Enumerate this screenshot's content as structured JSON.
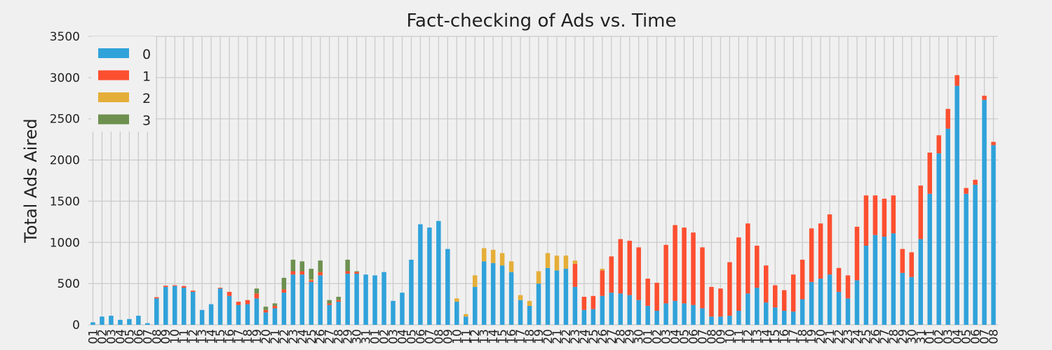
{
  "chart_data": {
    "type": "bar",
    "stacked": true,
    "title": "Fact-checking of Ads vs. Time",
    "xlabel": "",
    "ylabel": "Total Ads Aired",
    "ylim": [
      0,
      3500
    ],
    "yticks": [
      0,
      500,
      1000,
      1500,
      2000,
      2500,
      3000,
      3500
    ],
    "grid": true,
    "legend_position": "top-left",
    "categories": [
      "01",
      "02",
      "03",
      "04",
      "05",
      "06",
      "07",
      "08",
      "09",
      "10",
      "11",
      "12",
      "13",
      "14",
      "15",
      "16",
      "17",
      "18",
      "19",
      "20",
      "21",
      "22",
      "23",
      "24",
      "25",
      "26",
      "27",
      "28",
      "29",
      "30",
      "31",
      "01",
      "02",
      "03",
      "04",
      "05",
      "06",
      "07",
      "08",
      "09",
      "10",
      "11",
      "12",
      "13",
      "14",
      "15",
      "16",
      "17",
      "18",
      "19",
      "20",
      "21",
      "22",
      "23",
      "24",
      "25",
      "26",
      "27",
      "28",
      "29",
      "30",
      "01",
      "02",
      "03",
      "04",
      "05",
      "06",
      "07",
      "08",
      "09",
      "10",
      "11",
      "12",
      "13",
      "14",
      "15",
      "16",
      "17",
      "18",
      "19",
      "20",
      "21",
      "22",
      "23",
      "24",
      "25",
      "26",
      "27",
      "28",
      "29",
      "30",
      "31",
      "01",
      "02",
      "03",
      "04",
      "05",
      "06",
      "07",
      "08"
    ],
    "series": [
      {
        "name": "0",
        "color": "#30a2da",
        "values": [
          30,
          100,
          110,
          60,
          70,
          110,
          20,
          320,
          460,
          470,
          450,
          400,
          180,
          250,
          440,
          350,
          240,
          250,
          320,
          150,
          200,
          390,
          610,
          610,
          520,
          600,
          240,
          280,
          620,
          620,
          610,
          600,
          640,
          290,
          390,
          790,
          1220,
          1180,
          1260,
          920,
          280,
          100,
          460,
          770,
          750,
          720,
          640,
          300,
          230,
          500,
          690,
          660,
          680,
          460,
          180,
          190,
          350,
          390,
          380,
          360,
          300,
          230,
          170,
          260,
          290,
          260,
          240,
          200,
          100,
          100,
          110,
          170,
          380,
          450,
          270,
          210,
          170,
          160,
          310,
          520,
          560,
          610,
          400,
          320,
          540,
          960,
          1090,
          1070,
          1110,
          630,
          580,
          1040,
          1590,
          2080,
          2380,
          2900,
          1590,
          1700,
          2730,
          2180
        ]
      },
      {
        "name": "1",
        "color": "#fc4f30",
        "values": [
          0,
          0,
          0,
          0,
          0,
          0,
          0,
          15,
          15,
          10,
          20,
          15,
          0,
          0,
          10,
          50,
          40,
          50,
          60,
          30,
          30,
          40,
          40,
          40,
          20,
          40,
          20,
          20,
          30,
          20,
          0,
          0,
          0,
          0,
          0,
          0,
          0,
          0,
          0,
          0,
          0,
          0,
          0,
          0,
          0,
          0,
          0,
          0,
          0,
          0,
          0,
          0,
          0,
          280,
          160,
          160,
          310,
          440,
          660,
          660,
          640,
          330,
          340,
          710,
          920,
          920,
          880,
          740,
          360,
          340,
          650,
          890,
          850,
          510,
          450,
          270,
          250,
          450,
          480,
          650,
          670,
          730,
          290,
          280,
          650,
          610,
          480,
          460,
          460,
          290,
          300,
          650,
          500,
          220,
          240,
          130,
          70,
          60,
          50,
          40
        ]
      },
      {
        "name": "2",
        "color": "#e5ae38",
        "values": [
          0,
          0,
          0,
          0,
          0,
          0,
          0,
          0,
          0,
          0,
          0,
          0,
          0,
          0,
          0,
          0,
          0,
          0,
          0,
          0,
          0,
          0,
          0,
          0,
          10,
          0,
          0,
          0,
          0,
          0,
          0,
          0,
          0,
          0,
          0,
          0,
          0,
          0,
          0,
          0,
          40,
          30,
          140,
          160,
          160,
          150,
          130,
          60,
          60,
          150,
          180,
          180,
          160,
          40,
          0,
          0,
          20,
          0,
          0,
          0,
          0,
          0,
          0,
          0,
          0,
          0,
          0,
          0,
          0,
          0,
          0,
          0,
          0,
          0,
          0,
          0,
          0,
          0,
          0,
          0,
          0,
          0,
          0,
          0,
          0,
          0,
          0,
          0,
          0,
          0,
          0,
          0,
          0,
          0,
          0,
          0,
          0,
          0,
          0,
          0
        ]
      },
      {
        "name": "3",
        "color": "#6d904f",
        "values": [
          0,
          0,
          0,
          0,
          0,
          0,
          0,
          0,
          0,
          0,
          0,
          0,
          0,
          0,
          0,
          0,
          0,
          0,
          60,
          40,
          30,
          140,
          140,
          120,
          130,
          140,
          40,
          40,
          140,
          10,
          0,
          0,
          0,
          0,
          0,
          0,
          0,
          0,
          0,
          0,
          0,
          0,
          0,
          0,
          0,
          0,
          0,
          0,
          0,
          0,
          0,
          0,
          0,
          0,
          0,
          0,
          0,
          0,
          0,
          0,
          0,
          0,
          0,
          0,
          0,
          0,
          0,
          0,
          0,
          0,
          0,
          0,
          0,
          0,
          0,
          0,
          0,
          0,
          0,
          0,
          0,
          0,
          0,
          0,
          0,
          0,
          0,
          0,
          0,
          0,
          0,
          0,
          0,
          0,
          0,
          0,
          0,
          0,
          0,
          0
        ]
      }
    ]
  }
}
